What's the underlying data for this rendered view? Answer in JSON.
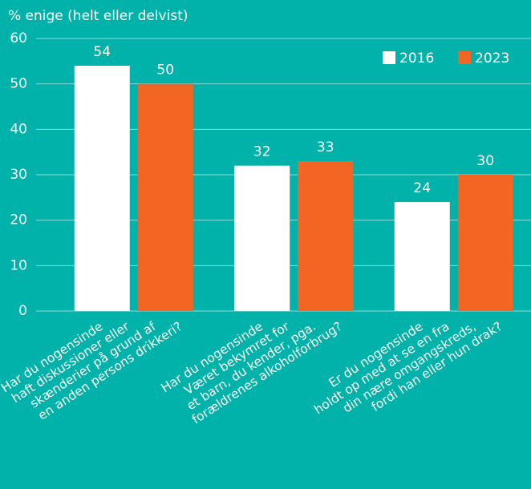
{
  "chart_data": {
    "type": "bar",
    "ylabel": "% enige (helt eller delvist)",
    "categories": [
      [
        "Har du nogensinde",
        "haft diskussioner eller",
        "skænderier på grund af",
        "en anden persons drikkeri?"
      ],
      [
        "Har du nogensinde",
        "Været bekymret for",
        "et barn, du kender, pga.",
        "forældrenes alkoholforbrug?"
      ],
      [
        "Er du nogensinde",
        "holdt op med at se en fra",
        "din nære omgangskreds,",
        "fordi han eller hun drak?"
      ]
    ],
    "series": [
      {
        "name": "2016",
        "color": "#ffffff",
        "values": [
          54,
          32,
          24
        ]
      },
      {
        "name": "2023",
        "color": "#f26522",
        "values": [
          50,
          33,
          30
        ]
      }
    ],
    "ylim": [
      0,
      60
    ],
    "yticks": [
      0,
      10,
      20,
      30,
      40,
      50,
      60
    ],
    "grid": true,
    "legend": "top-right"
  }
}
